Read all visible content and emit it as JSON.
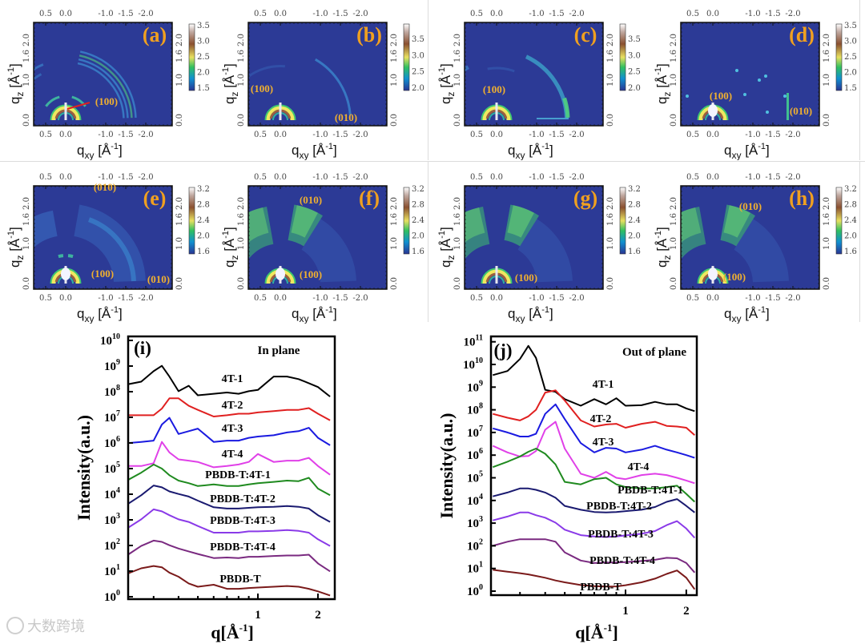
{
  "giwaxs_common": {
    "x_ticks": [
      "0.5",
      "0.0",
      "-1.0",
      "-1.5",
      "-2.0"
    ],
    "y_ticks": [
      "0.0",
      "1.0",
      "1.6",
      "2.0"
    ],
    "xlabel": {
      "base": "q",
      "sub": "xy",
      "unit": " [Å",
      "exp": "-1",
      "close": "]"
    },
    "ylabel": {
      "base": "q",
      "sub": "z",
      "unit": " [Å",
      "exp": "-1",
      "close": "]"
    }
  },
  "giwaxs_panels": [
    {
      "label": "(a)",
      "colorbar_ticks": [
        "1.5",
        "2.0",
        "2.5",
        "3.0",
        "3.5"
      ],
      "peaks": [
        "(100)"
      ]
    },
    {
      "label": "(b)",
      "colorbar_ticks": [
        "2.0",
        "2.5",
        "3.0",
        "3.5"
      ],
      "peaks": [
        "(100)",
        "(010)"
      ]
    },
    {
      "label": "(c)",
      "colorbar_ticks": [
        "2.0",
        "2.5",
        "3.0",
        "3.5"
      ],
      "peaks": [
        "(100)"
      ]
    },
    {
      "label": "(d)",
      "colorbar_ticks": [
        "1.5",
        "2.0",
        "2.5",
        "3.0",
        "3.5"
      ],
      "peaks": [
        "(100)",
        "(010)"
      ]
    },
    {
      "label": "(e)",
      "colorbar_ticks": [
        "1.6",
        "2.0",
        "2.4",
        "2.8",
        "3.2"
      ],
      "peaks": [
        "(010)",
        "(100)",
        "(010)"
      ]
    },
    {
      "label": "(f)",
      "colorbar_ticks": [
        "1.6",
        "2.0",
        "2.4",
        "2.8",
        "3.2"
      ],
      "peaks": [
        "(010)",
        "(100)"
      ]
    },
    {
      "label": "(g)",
      "colorbar_ticks": [
        "1.6",
        "2.0",
        "2.4",
        "2.8",
        "3.2"
      ],
      "peaks": [
        "(100)"
      ]
    },
    {
      "label": "(h)",
      "colorbar_ticks": [
        "1.6",
        "2.0",
        "2.4",
        "2.8",
        "3.2"
      ],
      "peaks": [
        "(010)",
        "(100)"
      ]
    }
  ],
  "chart_data": [
    {
      "type": "line",
      "panel_label": "(i)",
      "title": "In plane",
      "xlabel": {
        "base": "q[Å",
        "exp": "-1",
        "close": "]"
      },
      "ylabel": "Intensity(a.u.)",
      "xscale": "log",
      "yscale": "log",
      "xlim": [
        0.22,
        2.36
      ],
      "ylim_log10": [
        -0.1,
        10.25
      ],
      "x_tick_labels": [
        {
          "value": 1,
          "text": "1"
        },
        {
          "value": 2,
          "text": "2"
        }
      ],
      "y_tick_exponents": [
        0,
        1,
        2,
        3,
        4,
        5,
        6,
        7,
        8,
        9,
        10
      ],
      "y_tick_base": "10",
      "x": [
        0.22,
        0.26,
        0.3,
        0.33,
        0.36,
        0.4,
        0.45,
        0.5,
        0.6,
        0.7,
        0.8,
        0.9,
        1.0,
        1.2,
        1.4,
        1.6,
        1.8,
        2.0,
        2.3
      ],
      "series": [
        {
          "name": "4T-1",
          "color": "#000000",
          "log10_intensity": [
            8.28,
            8.39,
            8.8,
            9.01,
            8.59,
            8.02,
            8.23,
            7.86,
            7.92,
            7.97,
            7.92,
            8.02,
            8.07,
            8.59,
            8.59,
            8.49,
            8.33,
            8.18,
            7.81
          ]
        },
        {
          "name": "4T-2",
          "color": "#e02020",
          "log10_intensity": [
            7.08,
            7.08,
            7.08,
            7.34,
            7.74,
            7.74,
            7.45,
            7.29,
            7.03,
            7.08,
            7.14,
            7.14,
            7.19,
            7.24,
            7.29,
            7.29,
            7.36,
            7.14,
            6.88
          ]
        },
        {
          "name": "4T-3",
          "color": "#1a1ae0",
          "log10_intensity": [
            5.99,
            6.04,
            6.09,
            6.72,
            6.98,
            6.35,
            6.46,
            6.56,
            6.04,
            6.09,
            6.09,
            6.2,
            6.25,
            6.3,
            6.41,
            6.46,
            6.59,
            6.2,
            5.91
          ]
        },
        {
          "name": "4T-4",
          "color": "#e040e8",
          "log10_intensity": [
            5.1,
            5.1,
            5.21,
            6.04,
            5.63,
            5.36,
            5.31,
            5.26,
            5.05,
            5.1,
            5.16,
            5.26,
            5.57,
            5.26,
            5.31,
            5.31,
            5.42,
            5.1,
            4.76
          ]
        },
        {
          "name": "PBDB-T:4T-1",
          "color": "#1f8a1f",
          "log10_intensity": [
            4.53,
            4.84,
            5.16,
            5.0,
            4.74,
            4.53,
            4.43,
            4.32,
            4.38,
            4.32,
            4.32,
            4.38,
            4.43,
            4.48,
            4.53,
            4.51,
            4.64,
            4.22,
            3.96
          ]
        },
        {
          "name": "PBDB-T:4T-2",
          "color": "#1a1a70",
          "log10_intensity": [
            3.59,
            3.96,
            4.34,
            4.27,
            4.11,
            4.01,
            3.91,
            3.75,
            3.49,
            3.44,
            3.44,
            3.47,
            3.49,
            3.51,
            3.54,
            3.51,
            3.44,
            3.18,
            2.92
          ]
        },
        {
          "name": "PBDB-T:4T-3",
          "color": "#8a3ae8",
          "log10_intensity": [
            2.66,
            3.02,
            3.41,
            3.33,
            3.18,
            3.02,
            2.92,
            2.76,
            2.5,
            2.5,
            2.5,
            2.55,
            2.55,
            2.57,
            2.6,
            2.57,
            2.5,
            2.24,
            1.98
          ]
        },
        {
          "name": "PBDB-T:4T-4",
          "color": "#7a2a80",
          "log10_intensity": [
            1.61,
            1.98,
            2.19,
            2.14,
            2.01,
            1.88,
            1.77,
            1.67,
            1.51,
            1.53,
            1.51,
            1.56,
            1.56,
            1.59,
            1.61,
            1.61,
            1.64,
            1.3,
            0.99
          ]
        },
        {
          "name": "PBDB-T",
          "color": "#7a1a1a",
          "log10_intensity": [
            0.89,
            1.11,
            1.2,
            1.15,
            0.94,
            0.78,
            0.52,
            0.39,
            0.47,
            0.31,
            0.31,
            0.34,
            0.36,
            0.39,
            0.42,
            0.39,
            0.31,
            0.21,
            0.05
          ]
        }
      ]
    },
    {
      "type": "line",
      "panel_label": "(j)",
      "title": "Out of plane",
      "xlabel": {
        "base": "q[Å",
        "exp": "-1",
        "close": "]"
      },
      "ylabel": "Intensity(a.u.)",
      "xscale": "log",
      "yscale": "log",
      "xlim": [
        0.215,
        2.25
      ],
      "ylim_log10": [
        -0.2,
        11.2
      ],
      "x_tick_labels": [
        {
          "value": 1,
          "text": "1"
        },
        {
          "value": 2,
          "text": "2"
        }
      ],
      "y_tick_exponents": [
        0,
        1,
        2,
        3,
        4,
        5,
        6,
        7,
        8,
        9,
        10,
        11
      ],
      "y_tick_base": "10",
      "x": [
        0.22,
        0.26,
        0.3,
        0.33,
        0.36,
        0.4,
        0.45,
        0.5,
        0.6,
        0.7,
        0.8,
        0.9,
        1.0,
        1.2,
        1.4,
        1.6,
        1.8,
        2.0,
        2.2
      ],
      "series": [
        {
          "name": "4T-1",
          "color": "#000000",
          "log10_intensity": [
            9.53,
            9.71,
            10.24,
            10.82,
            10.29,
            8.88,
            8.79,
            8.47,
            8.18,
            8.47,
            8.24,
            8.51,
            8.18,
            8.2,
            8.35,
            8.24,
            8.24,
            8.06,
            7.94
          ]
        },
        {
          "name": "4T-2",
          "color": "#e02020",
          "log10_intensity": [
            7.82,
            7.65,
            7.53,
            7.71,
            8.0,
            8.76,
            8.86,
            8.41,
            7.53,
            7.26,
            7.35,
            7.38,
            7.21,
            7.38,
            7.47,
            7.29,
            7.26,
            7.21,
            6.88
          ]
        },
        {
          "name": "4T-3",
          "color": "#1a1ae0",
          "log10_intensity": [
            7.18,
            7.0,
            6.82,
            6.82,
            6.94,
            7.82,
            8.24,
            7.59,
            6.53,
            6.12,
            6.32,
            6.29,
            6.12,
            6.24,
            6.41,
            6.24,
            6.12,
            6.0,
            5.88
          ]
        },
        {
          "name": "4T-4",
          "color": "#e040e8",
          "log10_intensity": [
            6.41,
            6.12,
            5.94,
            5.96,
            6.18,
            7.12,
            7.47,
            6.29,
            5.18,
            5.0,
            5.26,
            5.0,
            4.94,
            5.12,
            5.18,
            5.12,
            5.0,
            4.88,
            4.76
          ]
        },
        {
          "name": "PBDB-T:4T-1",
          "color": "#1f8a1f",
          "log10_intensity": [
            5.47,
            5.71,
            5.94,
            6.15,
            6.29,
            6.06,
            5.59,
            4.82,
            4.71,
            4.94,
            5.0,
            4.71,
            4.59,
            4.53,
            4.53,
            4.59,
            4.65,
            4.29,
            3.94
          ]
        },
        {
          "name": "PBDB-T:4T-2",
          "color": "#1a1a70",
          "log10_intensity": [
            4.18,
            4.35,
            4.53,
            4.53,
            4.47,
            4.35,
            4.12,
            3.76,
            3.59,
            3.49,
            3.47,
            3.49,
            3.53,
            3.59,
            3.71,
            3.94,
            4.06,
            3.76,
            3.47
          ]
        },
        {
          "name": "PBDB-T:4T-3",
          "color": "#8a3ae8",
          "log10_intensity": [
            3.12,
            3.29,
            3.47,
            3.47,
            3.35,
            3.24,
            3.02,
            2.71,
            2.47,
            2.41,
            2.39,
            2.41,
            2.46,
            2.53,
            2.65,
            2.91,
            3.09,
            2.76,
            2.35
          ]
        },
        {
          "name": "PBDB-T:4T-4",
          "color": "#7a2a80",
          "log10_intensity": [
            2.0,
            2.18,
            2.29,
            2.29,
            2.29,
            2.29,
            2.18,
            1.71,
            1.35,
            1.24,
            1.26,
            1.26,
            1.28,
            1.33,
            1.38,
            1.47,
            1.45,
            1.24,
            0.82
          ]
        },
        {
          "name": "PBDB-T",
          "color": "#7a1a1a",
          "log10_intensity": [
            0.94,
            0.86,
            0.79,
            0.74,
            0.67,
            0.59,
            0.47,
            0.39,
            0.27,
            0.22,
            0.2,
            0.21,
            0.26,
            0.39,
            0.55,
            0.76,
            0.91,
            0.59,
            0.08
          ]
        }
      ]
    }
  ],
  "watermark": "大数跨境"
}
